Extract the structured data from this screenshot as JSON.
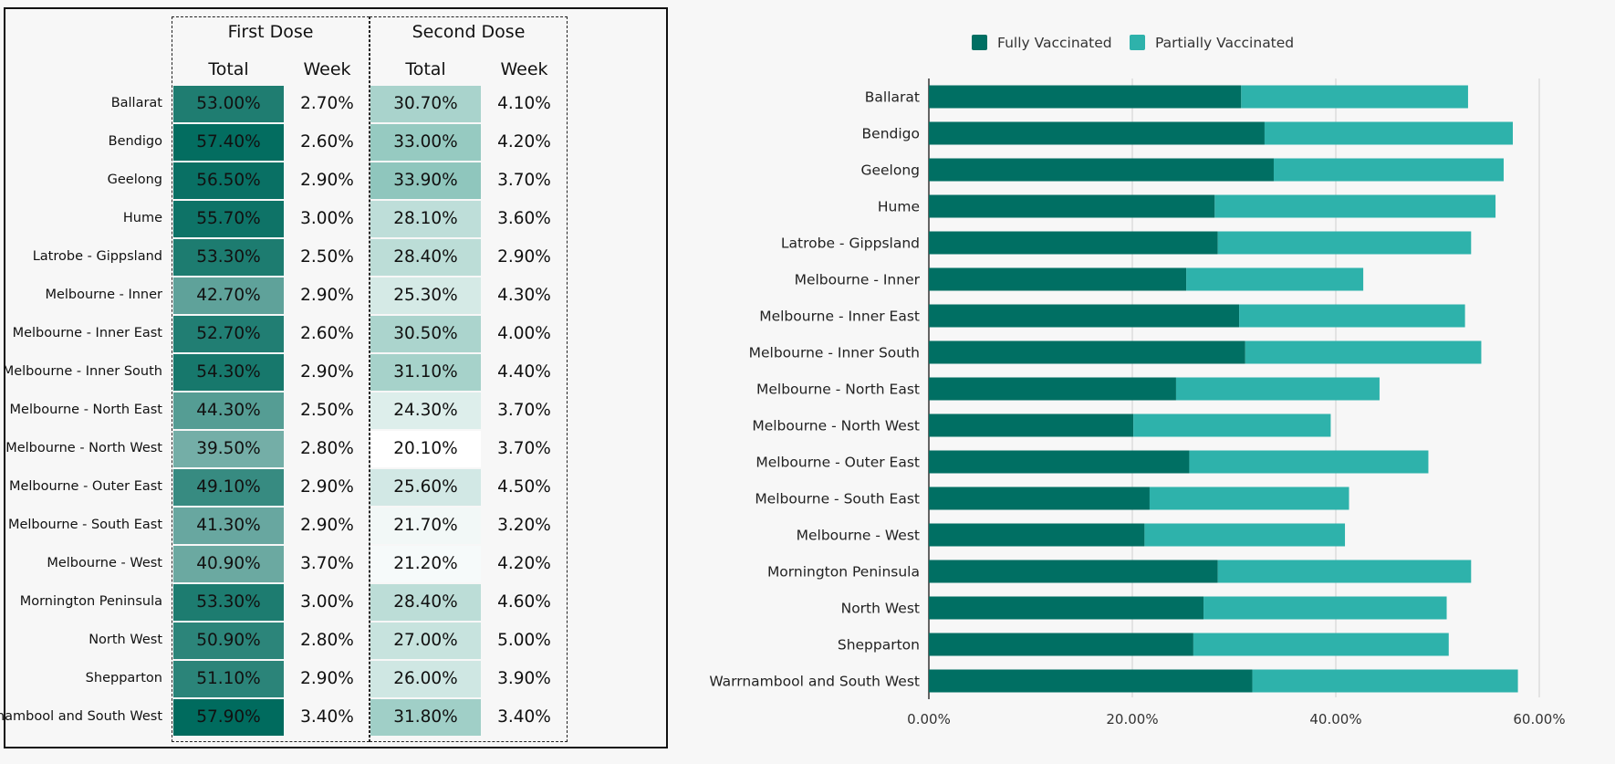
{
  "table": {
    "groups": [
      "First Dose",
      "Second Dose"
    ],
    "columns": [
      "Total",
      "Week",
      "Total",
      "Week"
    ],
    "rows": [
      {
        "region": "Ballarat",
        "first_total": "53.00%",
        "first_week": "2.70%",
        "second_total": "30.70%",
        "second_week": "4.10%"
      },
      {
        "region": "Bendigo",
        "first_total": "57.40%",
        "first_week": "2.60%",
        "second_total": "33.00%",
        "second_week": "4.20%"
      },
      {
        "region": "Geelong",
        "first_total": "56.50%",
        "first_week": "2.90%",
        "second_total": "33.90%",
        "second_week": "3.70%"
      },
      {
        "region": "Hume",
        "first_total": "55.70%",
        "first_week": "3.00%",
        "second_total": "28.10%",
        "second_week": "3.60%"
      },
      {
        "region": "Latrobe - Gippsland",
        "first_total": "53.30%",
        "first_week": "2.50%",
        "second_total": "28.40%",
        "second_week": "2.90%"
      },
      {
        "region": "Melbourne - Inner",
        "first_total": "42.70%",
        "first_week": "2.90%",
        "second_total": "25.30%",
        "second_week": "4.30%"
      },
      {
        "region": "Melbourne - Inner East",
        "first_total": "52.70%",
        "first_week": "2.60%",
        "second_total": "30.50%",
        "second_week": "4.00%"
      },
      {
        "region": "Melbourne - Inner South",
        "first_total": "54.30%",
        "first_week": "2.90%",
        "second_total": "31.10%",
        "second_week": "4.40%"
      },
      {
        "region": "Melbourne - North East",
        "first_total": "44.30%",
        "first_week": "2.50%",
        "second_total": "24.30%",
        "second_week": "3.70%"
      },
      {
        "region": "Melbourne - North West",
        "first_total": "39.50%",
        "first_week": "2.80%",
        "second_total": "20.10%",
        "second_week": "3.70%"
      },
      {
        "region": "Melbourne - Outer East",
        "first_total": "49.10%",
        "first_week": "2.90%",
        "second_total": "25.60%",
        "second_week": "4.50%"
      },
      {
        "region": "Melbourne - South East",
        "first_total": "41.30%",
        "first_week": "2.90%",
        "second_total": "21.70%",
        "second_week": "3.20%"
      },
      {
        "region": "Melbourne - West",
        "first_total": "40.90%",
        "first_week": "3.70%",
        "second_total": "21.20%",
        "second_week": "4.20%"
      },
      {
        "region": "Mornington Peninsula",
        "first_total": "53.30%",
        "first_week": "3.00%",
        "second_total": "28.40%",
        "second_week": "4.60%"
      },
      {
        "region": "North West",
        "first_total": "50.90%",
        "first_week": "2.80%",
        "second_total": "27.00%",
        "second_week": "5.00%"
      },
      {
        "region": "Shepparton",
        "first_total": "51.10%",
        "first_week": "2.90%",
        "second_total": "26.00%",
        "second_week": "3.90%"
      },
      {
        "region": "Warrnambool and South West",
        "first_total": "57.90%",
        "first_week": "3.40%",
        "second_total": "31.80%",
        "second_week": "3.40%"
      }
    ],
    "colors": {
      "first_dark": "#006b5e",
      "second_dark": "#8fc6bd",
      "light": "#ffffff"
    }
  },
  "chart_data": {
    "type": "bar",
    "orientation": "horizontal",
    "stacked": true,
    "categories": [
      "Ballarat",
      "Bendigo",
      "Geelong",
      "Hume",
      "Latrobe - Gippsland",
      "Melbourne - Inner",
      "Melbourne - Inner East",
      "Melbourne - Inner South",
      "Melbourne - North East",
      "Melbourne - North West",
      "Melbourne - Outer East",
      "Melbourne - South East",
      "Melbourne - West",
      "Mornington Peninsula",
      "North West",
      "Shepparton",
      "Warrnambool and South West"
    ],
    "series": [
      {
        "name": "Fully Vaccinated",
        "color": "#006f63",
        "values": [
          30.7,
          33.0,
          33.9,
          28.1,
          28.4,
          25.3,
          30.5,
          31.1,
          24.3,
          20.1,
          25.6,
          21.7,
          21.2,
          28.4,
          27.0,
          26.0,
          31.8
        ]
      },
      {
        "name": "Partially Vaccinated",
        "color": "#2eb2ab",
        "values": [
          22.3,
          24.4,
          22.6,
          27.6,
          24.9,
          17.4,
          22.2,
          23.2,
          20.0,
          19.4,
          23.5,
          19.6,
          19.7,
          24.9,
          23.9,
          25.1,
          26.1
        ]
      }
    ],
    "xlim": [
      0,
      60
    ],
    "xticks": [
      "0.00%",
      "20.00%",
      "40.00%",
      "60.00%"
    ],
    "xtick_values": [
      0,
      20,
      40,
      60
    ],
    "legend_position": "top",
    "grid": true,
    "title": "",
    "xlabel": "",
    "ylabel": ""
  }
}
